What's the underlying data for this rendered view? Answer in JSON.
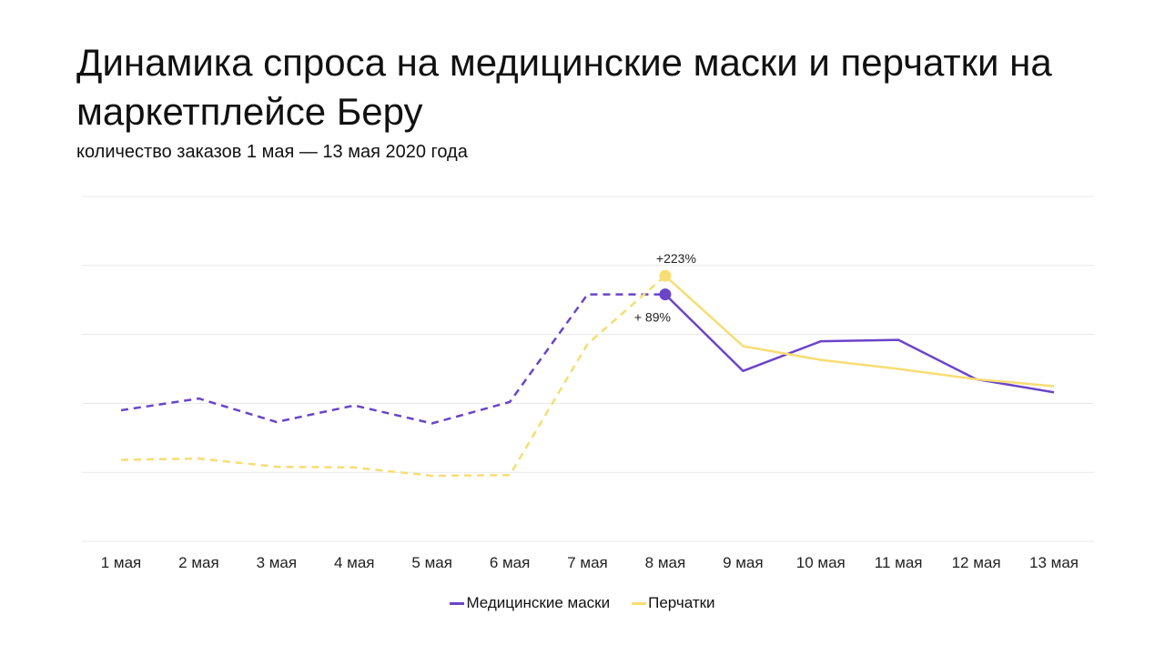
{
  "title": "Динамика спроса на медицинские маски и перчатки на маркетплейсе Беру",
  "subtitle": "количество заказов 1 мая — 13 мая 2020 года",
  "colors": {
    "masks": "#6a45c8",
    "gloves": "#f7dd73",
    "grid": "#e8e8e8"
  },
  "chart_data": {
    "type": "line",
    "title": "Динамика спроса на медицинские маски и перчатки на маркетплейсе Беру",
    "subtitle": "количество заказов 1 мая — 13 мая 2020 года",
    "categories": [
      "1 мая",
      "2 мая",
      "3 мая",
      "4 мая",
      "5 мая",
      "6 мая",
      "7 мая",
      "8 мая",
      "9 мая",
      "10 мая",
      "11 мая",
      "12 мая",
      "13 мая"
    ],
    "ylim": [
      0,
      5
    ],
    "grid": true,
    "y_axis_labels_shown": false,
    "legend_position": "bottom-center",
    "series": [
      {
        "name": "Медицинские маски",
        "color": "#6a45c8",
        "values": [
          1.9,
          2.07,
          1.73,
          1.97,
          1.71,
          2.02,
          3.58,
          3.58,
          2.47,
          2.9,
          2.92,
          2.35,
          2.16
        ],
        "dashed_until_index": 7
      },
      {
        "name": "Перчатки",
        "color": "#f7dd73",
        "values": [
          1.18,
          1.2,
          1.08,
          1.07,
          0.95,
          0.96,
          2.86,
          3.85,
          2.83,
          2.63,
          2.5,
          2.35,
          2.25
        ],
        "dashed_until_index": 7
      }
    ],
    "annotations": [
      {
        "series": 1,
        "index": 7,
        "text": "+223%"
      },
      {
        "series": 0,
        "index": 7,
        "text": "+ 89%"
      }
    ]
  }
}
